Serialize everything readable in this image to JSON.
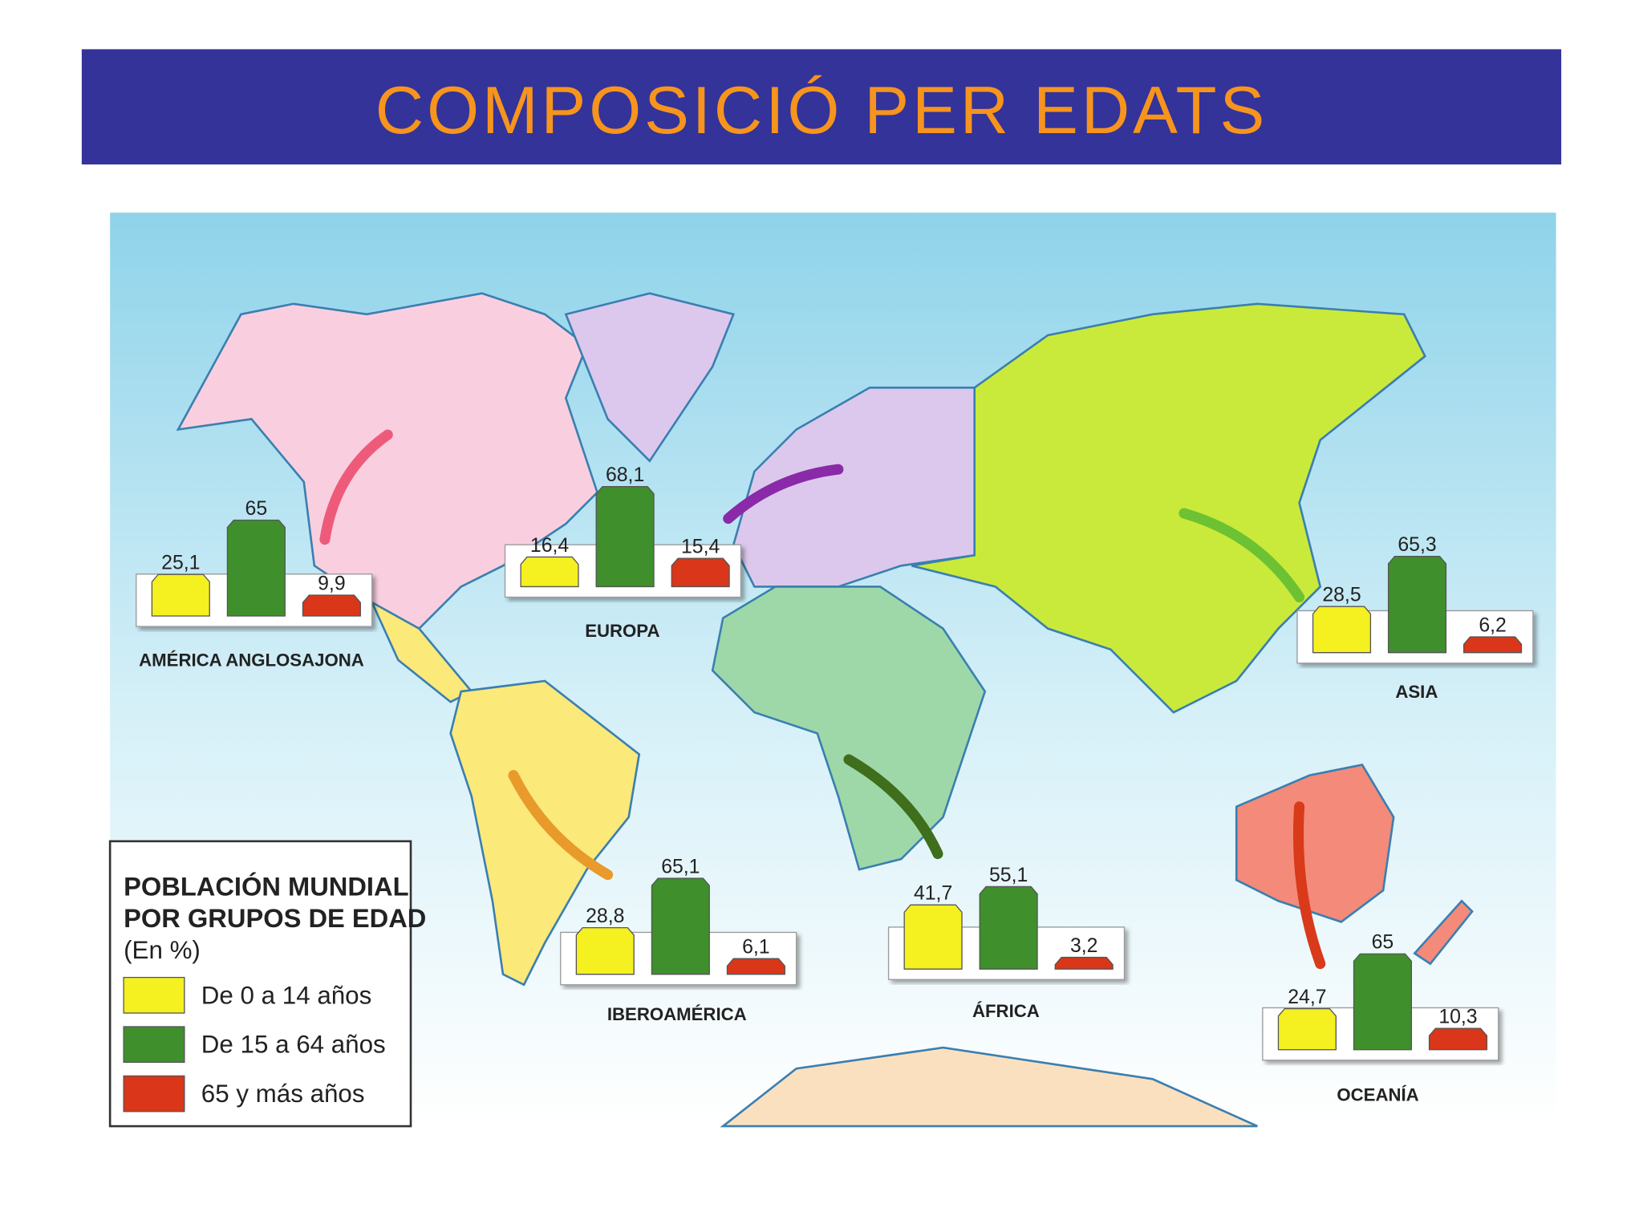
{
  "header": {
    "title": "COMPOSICIÓ PER EDATS"
  },
  "legend": {
    "title": [
      "POBLACIÓN MUNDIAL",
      "POR GRUPOS DE EDAD",
      "(En %)"
    ],
    "items": [
      {
        "label": "De 0 a 14 años",
        "color": "#f5f020"
      },
      {
        "label": "De 15 a 64 años",
        "color": "#3f8f2c"
      },
      {
        "label": "65 y más años",
        "color": "#d9361a"
      }
    ]
  },
  "regions": [
    {
      "name": "AMÉRICA ANGLOSAJONA",
      "values": [
        25.1,
        65,
        9.9
      ],
      "value_labels": [
        "25,1",
        "65",
        "9,9"
      ]
    },
    {
      "name": "EUROPA",
      "values": [
        16.4,
        68.1,
        15.4
      ],
      "value_labels": [
        "16,4",
        "68,1",
        "15,4"
      ]
    },
    {
      "name": "ASIA",
      "values": [
        28.5,
        65.3,
        6.2
      ],
      "value_labels": [
        "28,5",
        "65,3",
        "6,2"
      ]
    },
    {
      "name": "IBEROAMÉRICA",
      "values": [
        28.8,
        65.1,
        6.1
      ],
      "value_labels": [
        "28,8",
        "65,1",
        "6,1"
      ]
    },
    {
      "name": "ÁFRICA",
      "values": [
        41.7,
        55.1,
        3.2
      ],
      "value_labels": [
        "41,7",
        "55,1",
        "3,2"
      ]
    },
    {
      "name": "OCEANÍA",
      "values": [
        24.7,
        65,
        10.3
      ],
      "value_labels": [
        "24,7",
        "65",
        "10,3"
      ]
    }
  ]
}
